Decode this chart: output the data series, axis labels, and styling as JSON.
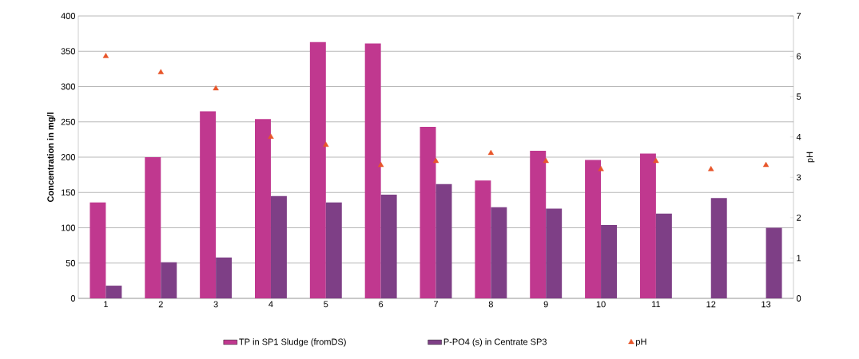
{
  "chart_data": {
    "type": "bar",
    "ylabel": "Concentration in mg/l",
    "y2label": "pH",
    "categories": [
      "1",
      "2",
      "3",
      "4",
      "5",
      "6",
      "7",
      "8",
      "9",
      "10",
      "11",
      "12",
      "13"
    ],
    "series": [
      {
        "name": "TP in SP1 Sludge (fromDS)",
        "color": "#c0388f",
        "values": [
          136,
          200,
          265,
          254,
          363,
          361,
          243,
          167,
          209,
          196,
          205,
          null,
          null
        ]
      },
      {
        "name": "P-PO4 (s) in Centrate SP3",
        "color": "#7e3f86",
        "values": [
          18,
          51,
          58,
          145,
          136,
          147,
          162,
          129,
          127,
          104,
          120,
          142,
          100
        ]
      },
      {
        "name": "pH",
        "type": "scatter",
        "axis": "y2",
        "marker": "triangle",
        "color": "#e8562a",
        "values": [
          6.0,
          5.6,
          5.2,
          4.0,
          3.8,
          3.3,
          3.4,
          3.6,
          3.4,
          3.2,
          3.4,
          3.2,
          3.3
        ]
      }
    ],
    "ylim": [
      0,
      400
    ],
    "yticks": [
      0,
      50,
      100,
      150,
      200,
      250,
      300,
      350,
      400
    ],
    "y2lim": [
      0,
      7
    ],
    "y2ticks": [
      0,
      1,
      2,
      3,
      4,
      5,
      6,
      7
    ],
    "grid": "y",
    "legend": "bottom"
  }
}
